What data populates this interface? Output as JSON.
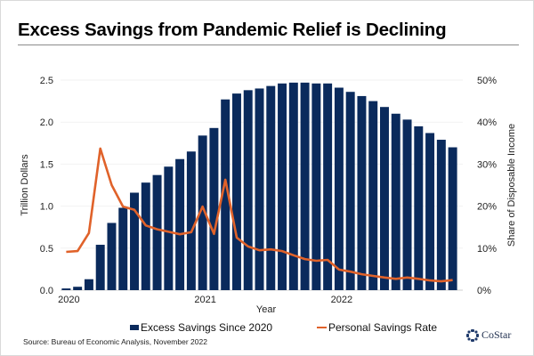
{
  "title": "Excess Savings from Pandemic Relief is Declining",
  "source": "Source: Bureau of Economic Analysis, November 2022",
  "logo": {
    "text": "CoStar"
  },
  "colors": {
    "bars": "#0a2a5c",
    "line": "#e0622a"
  },
  "chart_data": {
    "type": "bar+line",
    "title": "Excess Savings from Pandemic Relief is Declining",
    "xlabel": "Year",
    "ylabel_left": "Trillion Dollars",
    "ylabel_right": "Share of Disposable Income",
    "ylim_left": [
      0,
      2.5
    ],
    "ylim_right": [
      0,
      50
    ],
    "yticks_left": [
      "0.0",
      "0.5",
      "1.0",
      "1.5",
      "2.0",
      "2.5"
    ],
    "yticks_right": [
      "0%",
      "10%",
      "20%",
      "30%",
      "40%",
      "50%"
    ],
    "xticks": [
      {
        "label": "2020",
        "index": 0
      },
      {
        "label": "2021",
        "index": 12
      },
      {
        "label": "2022",
        "index": 24
      }
    ],
    "legend_position": "bottom",
    "series": [
      {
        "name": "Excess Savings Since 2020",
        "type": "bar",
        "axis": "left",
        "values": [
          0.02,
          0.04,
          0.13,
          0.54,
          0.8,
          0.98,
          1.16,
          1.28,
          1.37,
          1.47,
          1.56,
          1.65,
          1.84,
          1.93,
          2.27,
          2.34,
          2.38,
          2.4,
          2.43,
          2.46,
          2.47,
          2.47,
          2.46,
          2.46,
          2.41,
          2.36,
          2.31,
          2.25,
          2.18,
          2.1,
          2.03,
          1.95,
          1.87,
          1.79,
          1.7
        ]
      },
      {
        "name": "Personal Savings Rate",
        "type": "line",
        "axis": "right",
        "values": [
          9.1,
          9.3,
          13.6,
          33.7,
          25.0,
          19.9,
          19.1,
          15.4,
          14.5,
          13.9,
          13.3,
          13.8,
          19.9,
          13.4,
          26.3,
          12.5,
          10.4,
          9.5,
          9.7,
          9.3,
          8.3,
          7.4,
          7.0,
          7.2,
          4.9,
          4.4,
          3.8,
          3.4,
          3.0,
          2.7,
          3.0,
          2.7,
          2.3,
          2.1,
          2.4
        ]
      }
    ]
  }
}
